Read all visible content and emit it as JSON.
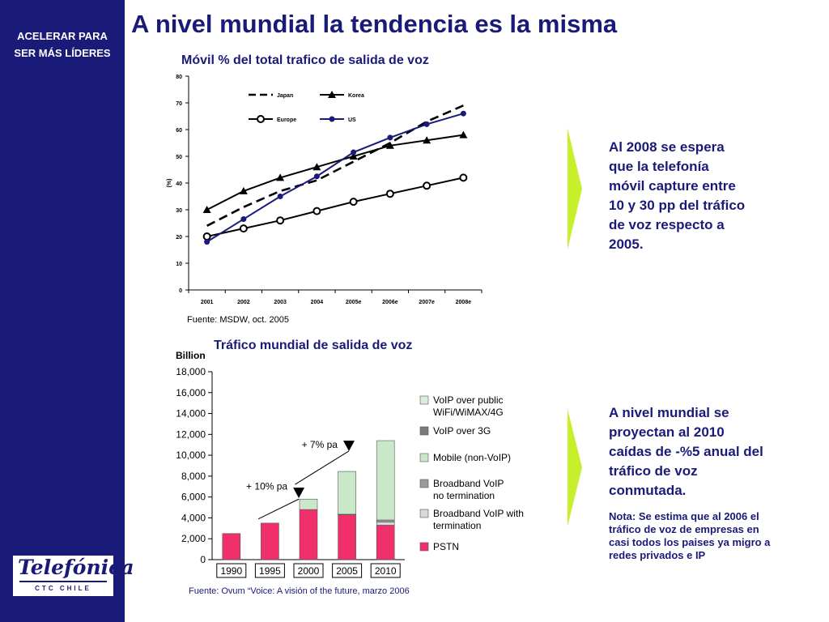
{
  "header": {
    "title": "A nivel mundial la tendencia es la misma",
    "sidebar_tag_line1": "ACELERAR PARA",
    "sidebar_tag_line2": "SER MÁS LÍDERES",
    "logo_text": "Telefónica",
    "logo_subtext": "CTC CHILE",
    "brand_color": "#1a1a78",
    "accent_color": "#c8ef2b"
  },
  "callouts": {
    "first": {
      "lines": [
        "Al 2008 se espera",
        "que la telefonía",
        "móvil capture entre",
        "10 y 30 pp del tráfico",
        "de voz respecto a",
        "2005."
      ]
    },
    "second": {
      "lines": [
        "A nivel mundial se",
        "proyectan al 2010",
        "caídas de -%5 anual del",
        "tráfico de voz",
        "conmutada."
      ],
      "note_lines": [
        "Nota: Se estima que al 2006 el",
        "tráfico de voz de empresas en",
        "casi todos los paises ya migro a",
        "redes privados e IP"
      ]
    }
  },
  "chart_data": [
    {
      "type": "line",
      "title": "Móvil % del total  trafico de salida de voz",
      "ylabel": "(%)",
      "xlabel": "",
      "x": [
        "2001",
        "2002",
        "2003",
        "2004",
        "2005e",
        "2006e",
        "2007e",
        "2008e"
      ],
      "ylim": [
        0,
        80
      ],
      "yticks": [
        "0",
        "10",
        "20",
        "30",
        "40",
        "50",
        "60",
        "70",
        "80"
      ],
      "series": [
        {
          "name": "Japan",
          "values": [
            24,
            31,
            37,
            41,
            48,
            55,
            63,
            69
          ],
          "color": "#000000",
          "style": "dashed"
        },
        {
          "name": "Korea",
          "values": [
            30,
            37,
            42,
            46,
            50,
            54,
            56,
            58
          ],
          "color": "#000000",
          "marker": "triangle"
        },
        {
          "name": "Europe",
          "values": [
            20,
            23,
            26,
            29.5,
            33,
            36,
            39,
            42
          ],
          "color": "#000000",
          "marker": "open-circle"
        },
        {
          "name": "US",
          "values": [
            18,
            26.5,
            35,
            42.5,
            51.5,
            57,
            62,
            66
          ],
          "color": "#1a1a78",
          "marker": "diamond"
        }
      ],
      "legend": "top-left",
      "grid": false,
      "source": "Fuente: MSDW, oct. 2005"
    },
    {
      "type": "bar",
      "stacked": true,
      "title": "Tráfico mundial de salida de voz",
      "ylabel": "Billion",
      "categories": [
        "1990",
        "1995",
        "2000",
        "2005",
        "2010"
      ],
      "ylim": [
        0,
        18000
      ],
      "yticks": [
        "0",
        "2,000",
        "4,000",
        "6,000",
        "8,000",
        "10,000",
        "12,000",
        "14,000",
        "16,000",
        "18,000"
      ],
      "series": [
        {
          "name": "PSTN",
          "values": [
            2500,
            3500,
            4800,
            4300,
            3300
          ],
          "color": "#f0306a"
        },
        {
          "name": "Broadband VoIP with termination",
          "values": [
            0,
            0,
            0,
            50,
            300
          ],
          "color": "#d8d8d8"
        },
        {
          "name": "Broadband VoIP no termination",
          "values": [
            0,
            0,
            0,
            0,
            200
          ],
          "color": "#9c9c9c"
        },
        {
          "name": "Mobile (non-VoIP)",
          "values": [
            0,
            0,
            1000,
            4100,
            7600
          ],
          "color": "#c8e8c8"
        },
        {
          "name": "VoIP over 3G",
          "values": [
            0,
            0,
            0,
            0,
            0
          ],
          "color": "#7a7a7a"
        },
        {
          "name": "VoIP over public WiFi/WiMAX/4G",
          "values": [
            0,
            0,
            0,
            0,
            0
          ],
          "color": "#dcebdc"
        }
      ],
      "legend_display": [
        {
          "lines": [
            "VoIP over public",
            "WiFi/WiMAX/4G"
          ],
          "color": "#dcebdc"
        },
        {
          "lines": [
            "VoIP over 3G"
          ],
          "color": "#7a7a7a"
        },
        {
          "lines": [
            "Mobile (non-VoIP)"
          ],
          "color": "#c8e8c8"
        },
        {
          "lines": [
            "Broadband VoIP",
            "no termination"
          ],
          "color": "#9c9c9c"
        },
        {
          "lines": [
            "Broadband VoIP with",
            "termination"
          ],
          "color": "#d8d8d8"
        },
        {
          "lines": [
            "PSTN"
          ],
          "color": "#f0306a"
        }
      ],
      "legend": "right",
      "annotations": [
        "+ 10% pa",
        "+ 7% pa"
      ],
      "source": "Fuente: Ovum “Voice: A visión of the future, marzo 2006"
    }
  ]
}
